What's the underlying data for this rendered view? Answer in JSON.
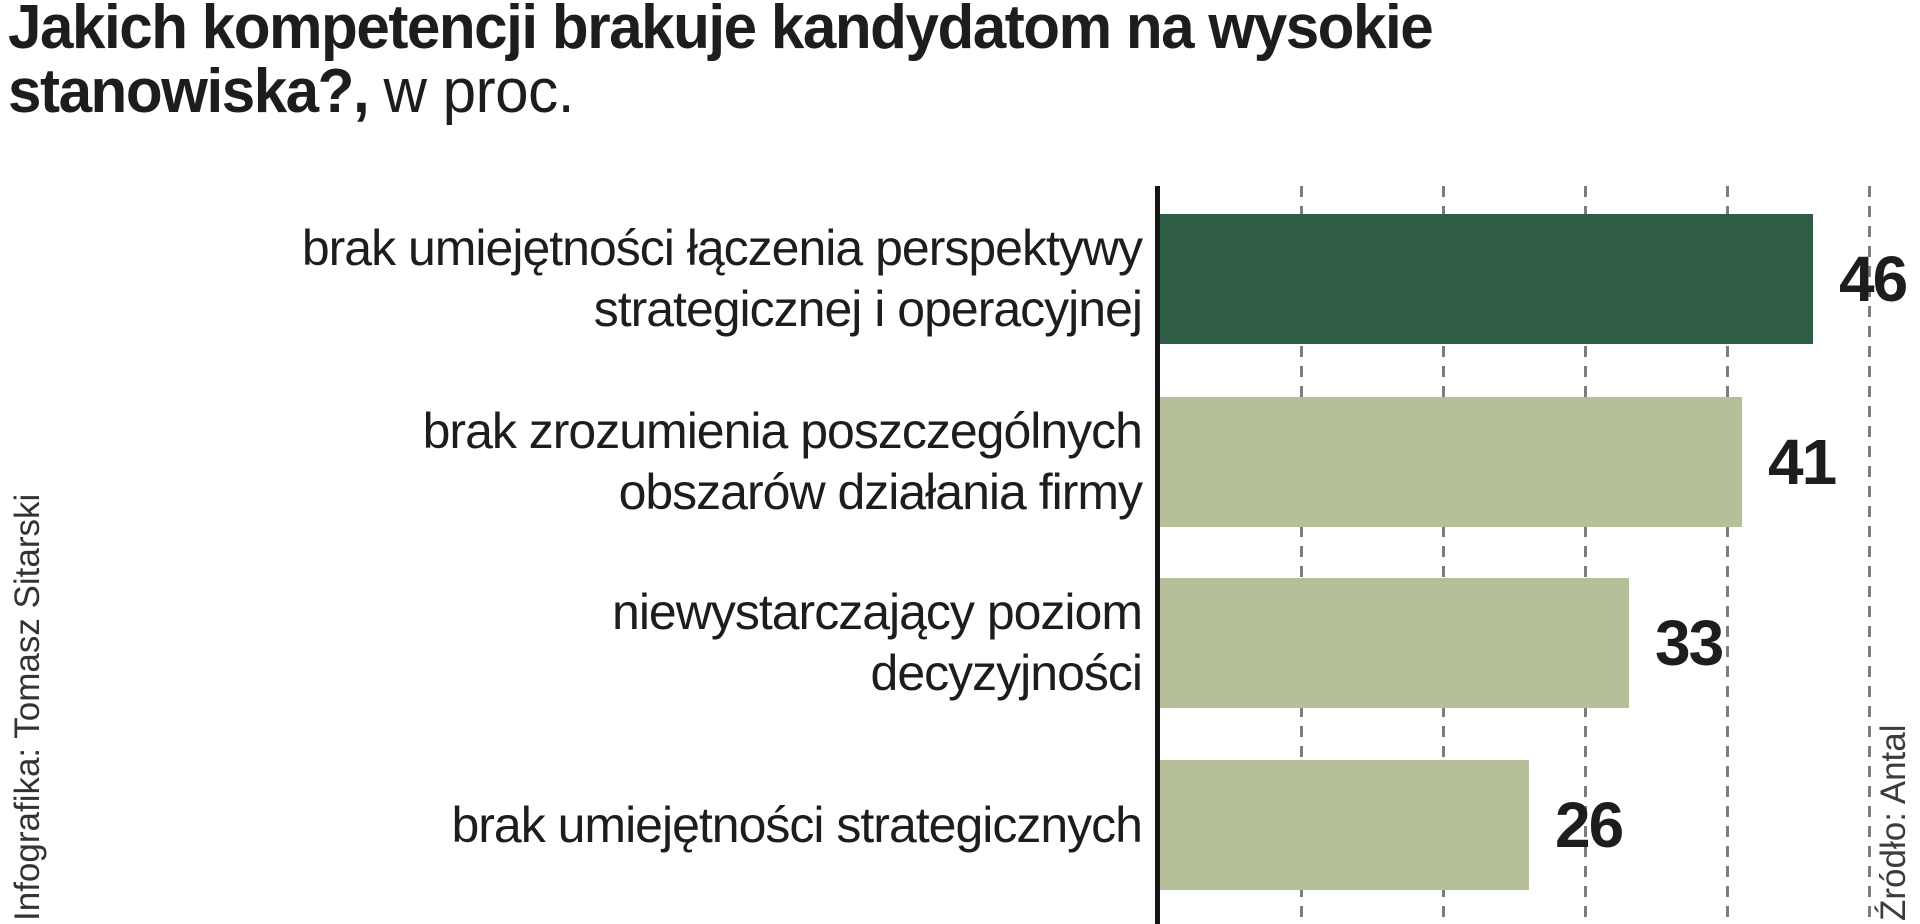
{
  "title": {
    "line1_bold": "Jakich kompetencji brakuje kandydatom na wysokie",
    "line2_bold": "stanowiska?,",
    "line2_regular": "w proc."
  },
  "credits": {
    "left": "Infografika: Tomasz Sitarski",
    "right": "Źródło: Antal"
  },
  "chart_data": {
    "type": "bar",
    "orientation": "horizontal",
    "title": "Jakich kompetencji brakuje kandydatom na wysokie stanowiska?",
    "units_label": "w proc.",
    "categories": [
      "brak umiejętności łączenia perspektywy strategicznej i operacyjnej",
      "brak zrozumienia poszczególnych obszarów działania firmy",
      "niewystarczający poziom decyzyjności",
      "brak umiejętności strategicznych"
    ],
    "values": [
      46,
      41,
      33,
      26
    ],
    "xlim": [
      0,
      50
    ],
    "gridlines_x": [
      10,
      20,
      30,
      40,
      50
    ],
    "grid_style": "dashed vertical, no tick labels",
    "legend": "none",
    "colors": {
      "bar_highlight": "#2e5c45",
      "bar_default": "#b5c09a",
      "axis": "#161616",
      "gridline": "#7d7d7d",
      "text": "#1d1d1b"
    },
    "bars": [
      {
        "line1": "brak umiejętności łączenia perspektywy",
        "line2": "strategicznej i operacyjnej",
        "value": 46,
        "color": "#2e5c45"
      },
      {
        "line1": "brak zrozumienia poszczególnych",
        "line2": "obszarów działania firmy",
        "value": 41,
        "color": "#b5c09a"
      },
      {
        "line1": "niewystarczający poziom",
        "line2": "decyzyjności",
        "value": 33,
        "color": "#b5c09a"
      },
      {
        "line1": "brak umiejętności strategicznych",
        "line2": "",
        "value": 26,
        "color": "#b5c09a"
      }
    ]
  }
}
